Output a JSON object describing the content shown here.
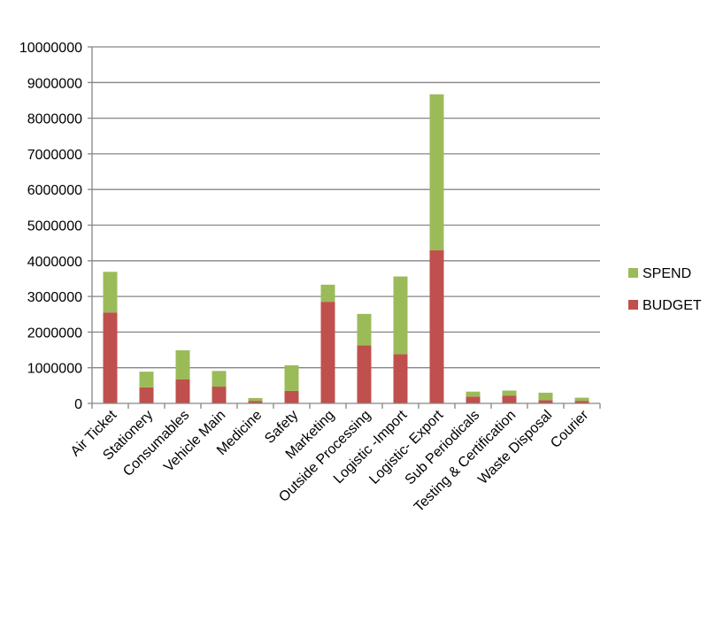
{
  "chart_data": {
    "type": "bar",
    "stacked": true,
    "categories": [
      "Air Ticket",
      "Stationery",
      "Consumables",
      "Vehicle Main",
      "Medicine",
      "Safety",
      "Marketing",
      "Outside Processing",
      "Logistic -Import",
      "Logistic- Export",
      "Sub Periodicals",
      "Testing & Certification",
      "Waste Disposal",
      "Courier"
    ],
    "series": [
      {
        "name": "BUDGET",
        "color": "#C0504D",
        "values": [
          2550000,
          450000,
          670000,
          470000,
          70000,
          350000,
          2850000,
          1630000,
          1380000,
          4300000,
          190000,
          220000,
          90000,
          70000
        ]
      },
      {
        "name": "SPEND",
        "color": "#9BBB59",
        "values": [
          1140000,
          440000,
          820000,
          440000,
          80000,
          720000,
          480000,
          880000,
          2180000,
          4370000,
          140000,
          140000,
          210000,
          90000
        ]
      }
    ],
    "ylim": [
      0,
      10000000
    ],
    "yticks": [
      "0",
      "1000000",
      "2000000",
      "3000000",
      "4000000",
      "5000000",
      "6000000",
      "7000000",
      "8000000",
      "9000000",
      "10000000"
    ],
    "grid": true,
    "legend": {
      "position": "right",
      "entries": [
        "SPEND",
        "BUDGET"
      ]
    },
    "title": "",
    "xlabel": "",
    "ylabel": ""
  }
}
